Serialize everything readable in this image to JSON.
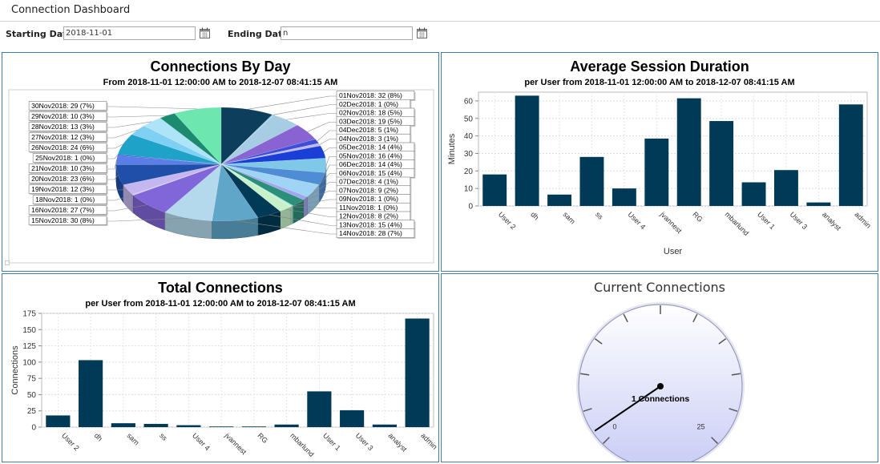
{
  "page": {
    "title": "Connection Dashboard"
  },
  "filters": {
    "start_label": "Starting Date",
    "start_value": "2018-11-01",
    "end_label": "Ending Date",
    "end_value": "n"
  },
  "colors": {
    "bar": "#003a57",
    "panel_border": "#3f7da8",
    "gauge_fill": "#c9ccf5"
  },
  "charts": {
    "pie": {
      "title": "Connections By Day",
      "subtitle": "From 2018-11-01 12:00:00 AM to 2018-12-07 08:41:15 AM",
      "chart_data": {
        "type": "pie",
        "slices": [
          {
            "label": "01Nov2018: 32 (8%)",
            "value": 32,
            "color": "#0d3f5c"
          },
          {
            "label": "02Dec2018: 1 (0%)",
            "value": 1,
            "color": "#9fd3ee"
          },
          {
            "label": "02Nov2018: 18 (5%)",
            "value": 18,
            "color": "#a6cde3"
          },
          {
            "label": "03Dec2018: 19 (5%)",
            "value": 19,
            "color": "#8a63d2"
          },
          {
            "label": "04Dec2018: 5 (1%)",
            "value": 5,
            "color": "#3d4fd8"
          },
          {
            "label": "04Nov2018: 3 (1%)",
            "value": 3,
            "color": "#c0b8ec"
          },
          {
            "label": "05Dec2018: 14 (4%)",
            "value": 14,
            "color": "#1a3fd6"
          },
          {
            "label": "05Nov2018: 16 (4%)",
            "value": 16,
            "color": "#7fc8e8"
          },
          {
            "label": "06Dec2018: 14 (4%)",
            "value": 14,
            "color": "#4f8cd6"
          },
          {
            "label": "06Nov2018: 15 (4%)",
            "value": 15,
            "color": "#a0d4f4"
          },
          {
            "label": "07Dec2018: 4 (1%)",
            "value": 4,
            "color": "#9fa7f0"
          },
          {
            "label": "07Nov2018: 9 (2%)",
            "value": 9,
            "color": "#2b8f7a"
          },
          {
            "label": "09Nov2018: 1 (0%)",
            "value": 1,
            "color": "#93e8c8"
          },
          {
            "label": "11Nov2018: 1 (0%)",
            "value": 1,
            "color": "#c8f0da"
          },
          {
            "label": "12Nov2018: 8 (2%)",
            "value": 8,
            "color": "#c6f1c9"
          },
          {
            "label": "13Nov2018: 15 (4%)",
            "value": 15,
            "color": "#003a57"
          },
          {
            "label": "14Nov2018: 28 (7%)",
            "value": 28,
            "color": "#5fa6c9"
          },
          {
            "label": "15Nov2018: 30 (8%)",
            "value": 30,
            "color": "#b4d8ec"
          },
          {
            "label": "16Nov2018: 27 (7%)",
            "value": 27,
            "color": "#8066d8"
          },
          {
            "label": "18Nov2018: 1 (0%)",
            "value": 1,
            "color": "#cfc8f2"
          },
          {
            "label": "19Nov2018: 12 (3%)",
            "value": 12,
            "color": "#c4b6ee"
          },
          {
            "label": "20Nov2018: 23 (6%)",
            "value": 23,
            "color": "#1f4fa8"
          },
          {
            "label": "21Nov2018: 10 (3%)",
            "value": 10,
            "color": "#5a7ee8"
          },
          {
            "label": "25Nov2018: 1 (0%)",
            "value": 1,
            "color": "#2435c8"
          },
          {
            "label": "26Nov2018: 24 (6%)",
            "value": 24,
            "color": "#1fa2c8"
          },
          {
            "label": "27Nov2018: 12 (3%)",
            "value": 12,
            "color": "#7fd0f2"
          },
          {
            "label": "28Nov2018: 13 (3%)",
            "value": 13,
            "color": "#aee4f7"
          },
          {
            "label": "29Nov2018: 10 (3%)",
            "value": 10,
            "color": "#1c8a6e"
          },
          {
            "label": "30Nov2018: 29 (7%)",
            "value": 29,
            "color": "#6ee6b0"
          }
        ]
      }
    },
    "duration": {
      "title": "Average Session Duration",
      "subtitle": "per User from 2018-11-01 12:00:00 AM to 2018-12-07 08:41:15 AM",
      "chart_data": {
        "type": "bar",
        "categories": [
          "User 2",
          "dh",
          "sam",
          "ss",
          "User 4",
          "jvannest",
          "RG",
          "mbarlund",
          "User 1",
          "User 3",
          "analyst",
          "admin"
        ],
        "values": [
          18,
          63,
          6.5,
          28,
          10,
          38.5,
          61.5,
          48.5,
          13.5,
          20.5,
          2,
          58
        ],
        "xlabel": "User",
        "ylabel": "Minutes",
        "ylim": [
          0,
          65
        ],
        "yticks": [
          0,
          10,
          20,
          30,
          40,
          50,
          60
        ],
        "grid": true
      }
    },
    "total": {
      "title": "Total Connections",
      "subtitle": "per User from 2018-11-01 12:00:00 AM to 2018-12-07 08:41:15 AM",
      "chart_data": {
        "type": "bar",
        "categories": [
          "User 2",
          "dh",
          "sam",
          "ss",
          "User 4",
          "jvannest",
          "RG",
          "mbarlund",
          "User 1",
          "User 3",
          "analyst",
          "admin"
        ],
        "values": [
          18,
          103,
          6,
          5,
          3,
          1,
          1,
          4,
          55,
          26,
          4,
          167
        ],
        "xlabel": "",
        "ylabel": "Connections",
        "ylim": [
          0,
          175
        ],
        "yticks": [
          0,
          25,
          50,
          75,
          100,
          125,
          150,
          175
        ],
        "grid": true
      }
    },
    "gauge": {
      "title": "Current Connections",
      "value_label": "1 Connections",
      "value": 1,
      "min": 0,
      "max": 25,
      "min_label": "0",
      "max_label": "25"
    }
  }
}
